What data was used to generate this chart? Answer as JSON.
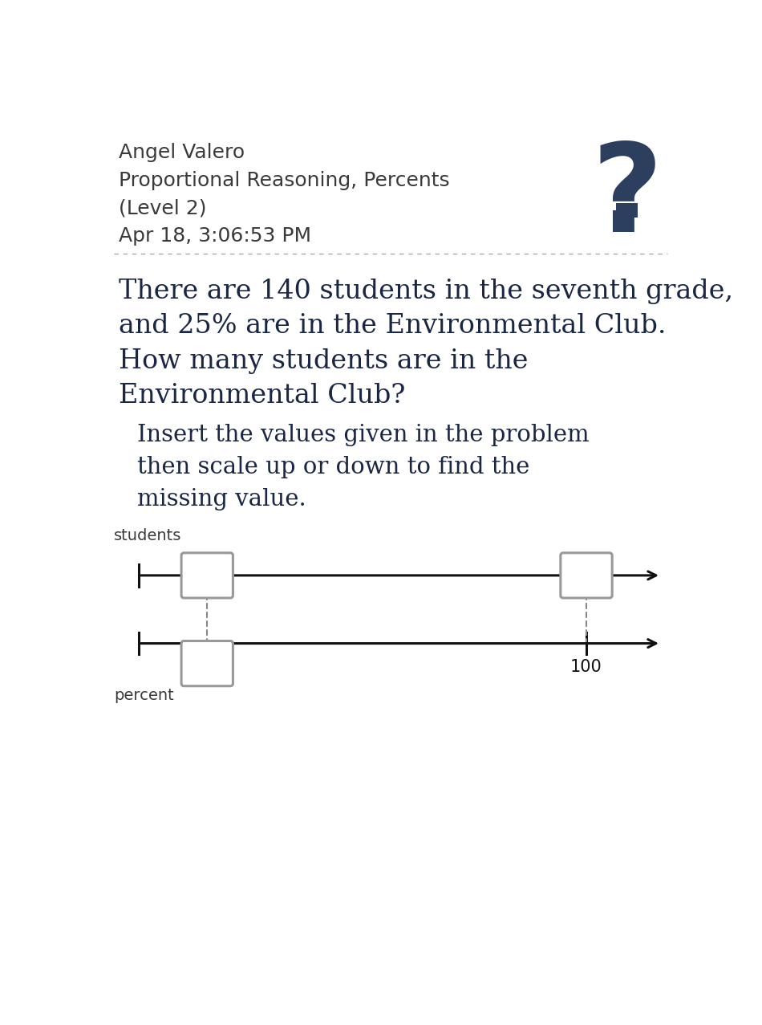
{
  "bg_color": "#ffffff",
  "header_name": "Angel Valero",
  "header_subject": "Proportional Reasoning, Percents",
  "header_level": "(Level 2)",
  "header_date": "Apr 18, 3:06:53 PM",
  "question_mark": "?",
  "question_mark_color": "#2d3f5e",
  "divider_color": "#aaaaaa",
  "problem_text_line1": "There are 140 students in the seventh grade,",
  "problem_text_line2": "and 25% are in the Environmental Club.",
  "problem_text_line3": "How many students are in the",
  "problem_text_line4": "Environmental Club?",
  "instruction_line1": "Insert the values given in the problem",
  "instruction_line2": "then scale up or down to find the",
  "instruction_line3": "missing value.",
  "label_students": "students",
  "label_percent": "percent",
  "tick_label_100": "100",
  "header_font_color": "#3a3a3a",
  "problem_font_color": "#1a2744",
  "instruction_font_color": "#1a2744",
  "axis_color": "#111111",
  "box_edge_color": "#999999",
  "dashed_line_color": "#888888",
  "header_fontsize": 18,
  "problem_fontsize": 24,
  "instruction_fontsize": 21,
  "label_fontsize": 14,
  "tick_fontsize": 15
}
